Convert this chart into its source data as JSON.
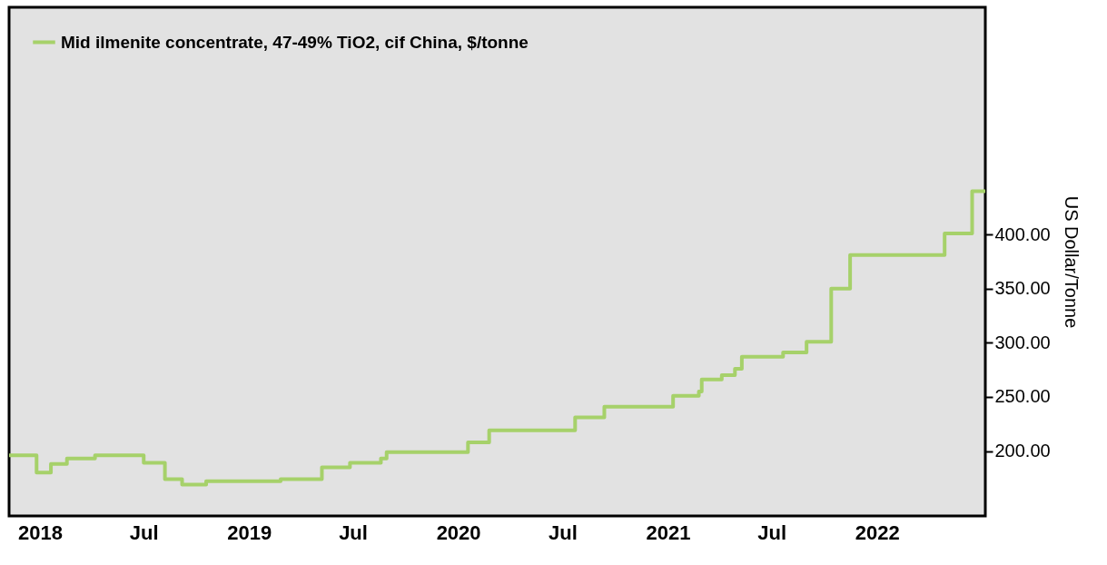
{
  "chart_data": {
    "type": "step",
    "ylabel": "US Dollar/Tonne",
    "legend": "top left",
    "grid": false,
    "line_style": "solid",
    "marker": "none",
    "x": [
      "2017-11-08",
      "2017-12-26",
      "2018-01-20",
      "2018-02-17",
      "2018-04-07",
      "2018-07-01",
      "2018-08-07",
      "2018-09-06",
      "2018-10-18",
      "2019-02-25",
      "2019-05-08",
      "2019-06-26",
      "2019-08-19",
      "2019-08-29",
      "2020-01-18",
      "2020-02-24",
      "2020-07-23",
      "2020-09-12",
      "2021-01-10",
      "2021-02-24",
      "2021-03-01",
      "2021-04-05",
      "2021-04-28",
      "2021-05-10",
      "2021-07-21",
      "2021-08-31",
      "2021-10-13",
      "2021-11-15",
      "2022-04-29",
      "2022-06-16",
      "2022-07-09"
    ],
    "series": [
      {
        "name": "Mid ilmenite concentrate, 47-49% TiO2, cif China, $/tonne",
        "color": "#a6d16a",
        "values": [
          196,
          180,
          188,
          193,
          196,
          189,
          174,
          169,
          172,
          174,
          185,
          189,
          193,
          199,
          208,
          219,
          231,
          241,
          251,
          255,
          266,
          270,
          276,
          287,
          291,
          301,
          350,
          381,
          401,
          440,
          440
        ]
      }
    ],
    "xlim": [
      "2017-11-08",
      "2022-07-09"
    ],
    "xticks": [
      {
        "value": "2018-01-01",
        "label": "2018"
      },
      {
        "value": "2018-07-01",
        "label": "Jul"
      },
      {
        "value": "2019-01-01",
        "label": "2019"
      },
      {
        "value": "2019-07-01",
        "label": "Jul"
      },
      {
        "value": "2020-01-01",
        "label": "2020"
      },
      {
        "value": "2020-07-01",
        "label": "Jul"
      },
      {
        "value": "2021-01-01",
        "label": "2021"
      },
      {
        "value": "2021-07-01",
        "label": "Jul"
      },
      {
        "value": "2022-01-01",
        "label": "2022"
      }
    ],
    "ylim": [
      140,
      610
    ],
    "yticks": [
      {
        "value": 200,
        "label": "200.00"
      },
      {
        "value": 250,
        "label": "250.00"
      },
      {
        "value": 300,
        "label": "300.00"
      },
      {
        "value": 350,
        "label": "350.00"
      },
      {
        "value": 400,
        "label": "400.00"
      }
    ]
  }
}
